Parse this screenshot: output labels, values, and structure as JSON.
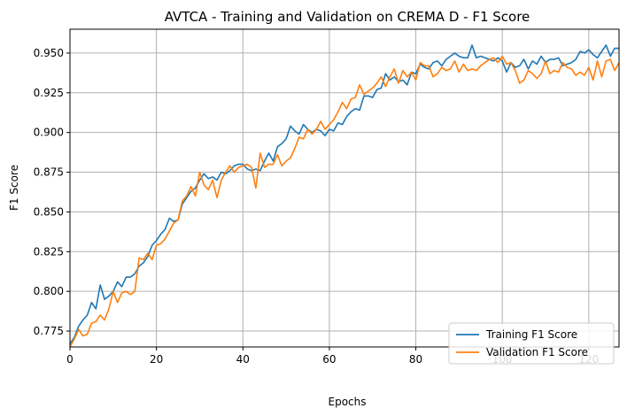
{
  "chart_data": {
    "type": "line",
    "title": "AVTCA - Training and Validation on CREMA D - F1 Score",
    "xlabel": "Epochs",
    "ylabel": "F1 Score",
    "xlim": [
      0,
      127
    ],
    "ylim": [
      0.765,
      0.965
    ],
    "xticks": [
      0,
      20,
      40,
      60,
      80,
      100,
      120
    ],
    "yticks": [
      0.775,
      0.8,
      0.825,
      0.85,
      0.875,
      0.9,
      0.925,
      0.95
    ],
    "ytick_labels": [
      "0.775",
      "0.800",
      "0.825",
      "0.850",
      "0.875",
      "0.900",
      "0.925",
      "0.950"
    ],
    "grid": true,
    "legend_position": "lower-right",
    "series": [
      {
        "name": "Training F1 Score",
        "color": "#1f77b4",
        "values": [
          0.767,
          0.771,
          0.778,
          0.782,
          0.785,
          0.793,
          0.789,
          0.804,
          0.795,
          0.797,
          0.8,
          0.806,
          0.803,
          0.809,
          0.809,
          0.811,
          0.816,
          0.818,
          0.822,
          0.829,
          0.832,
          0.836,
          0.839,
          0.846,
          0.844,
          0.845,
          0.855,
          0.859,
          0.863,
          0.865,
          0.87,
          0.874,
          0.871,
          0.872,
          0.87,
          0.875,
          0.874,
          0.876,
          0.879,
          0.88,
          0.88,
          0.877,
          0.876,
          0.877,
          0.876,
          0.882,
          0.887,
          0.882,
          0.891,
          0.893,
          0.896,
          0.904,
          0.901,
          0.899,
          0.905,
          0.902,
          0.9,
          0.902,
          0.901,
          0.898,
          0.902,
          0.901,
          0.906,
          0.905,
          0.91,
          0.913,
          0.915,
          0.914,
          0.923,
          0.923,
          0.922,
          0.927,
          0.928,
          0.937,
          0.933,
          0.935,
          0.932,
          0.933,
          0.93,
          0.938,
          0.937,
          0.943,
          0.941,
          0.94,
          0.944,
          0.945,
          0.942,
          0.946,
          0.948,
          0.95,
          0.948,
          0.947,
          0.947,
          0.955,
          0.947,
          0.948,
          0.947,
          0.946,
          0.945,
          0.947,
          0.945,
          0.938,
          0.944,
          0.941,
          0.942,
          0.946,
          0.94,
          0.945,
          0.943,
          0.948,
          0.944,
          0.946,
          0.946,
          0.947,
          0.942,
          0.943,
          0.944,
          0.946,
          0.951,
          0.95,
          0.952,
          0.949,
          0.947,
          0.951,
          0.955,
          0.948,
          0.953,
          0.953,
          0.949,
          0.951
        ]
      },
      {
        "name": "Validation F1 Score",
        "color": "#ff7f0e",
        "values": [
          0.765,
          0.77,
          0.776,
          0.772,
          0.773,
          0.78,
          0.781,
          0.785,
          0.782,
          0.789,
          0.8,
          0.793,
          0.799,
          0.8,
          0.798,
          0.8,
          0.821,
          0.82,
          0.824,
          0.82,
          0.829,
          0.83,
          0.833,
          0.838,
          0.843,
          0.845,
          0.857,
          0.86,
          0.866,
          0.86,
          0.875,
          0.867,
          0.864,
          0.87,
          0.859,
          0.87,
          0.875,
          0.879,
          0.875,
          0.878,
          0.879,
          0.88,
          0.878,
          0.865,
          0.887,
          0.878,
          0.88,
          0.88,
          0.886,
          0.879,
          0.882,
          0.884,
          0.89,
          0.897,
          0.896,
          0.902,
          0.899,
          0.902,
          0.907,
          0.902,
          0.905,
          0.908,
          0.913,
          0.919,
          0.915,
          0.921,
          0.922,
          0.93,
          0.924,
          0.926,
          0.928,
          0.931,
          0.935,
          0.929,
          0.935,
          0.94,
          0.931,
          0.939,
          0.935,
          0.938,
          0.933,
          0.944,
          0.942,
          0.942,
          0.935,
          0.937,
          0.941,
          0.939,
          0.94,
          0.945,
          0.938,
          0.943,
          0.939,
          0.94,
          0.939,
          0.942,
          0.944,
          0.946,
          0.947,
          0.944,
          0.948,
          0.943,
          0.944,
          0.939,
          0.931,
          0.933,
          0.939,
          0.937,
          0.934,
          0.937,
          0.945,
          0.937,
          0.939,
          0.938,
          0.944,
          0.941,
          0.94,
          0.936,
          0.938,
          0.936,
          0.941,
          0.933,
          0.945,
          0.935,
          0.945,
          0.946,
          0.939,
          0.944
        ]
      }
    ]
  }
}
